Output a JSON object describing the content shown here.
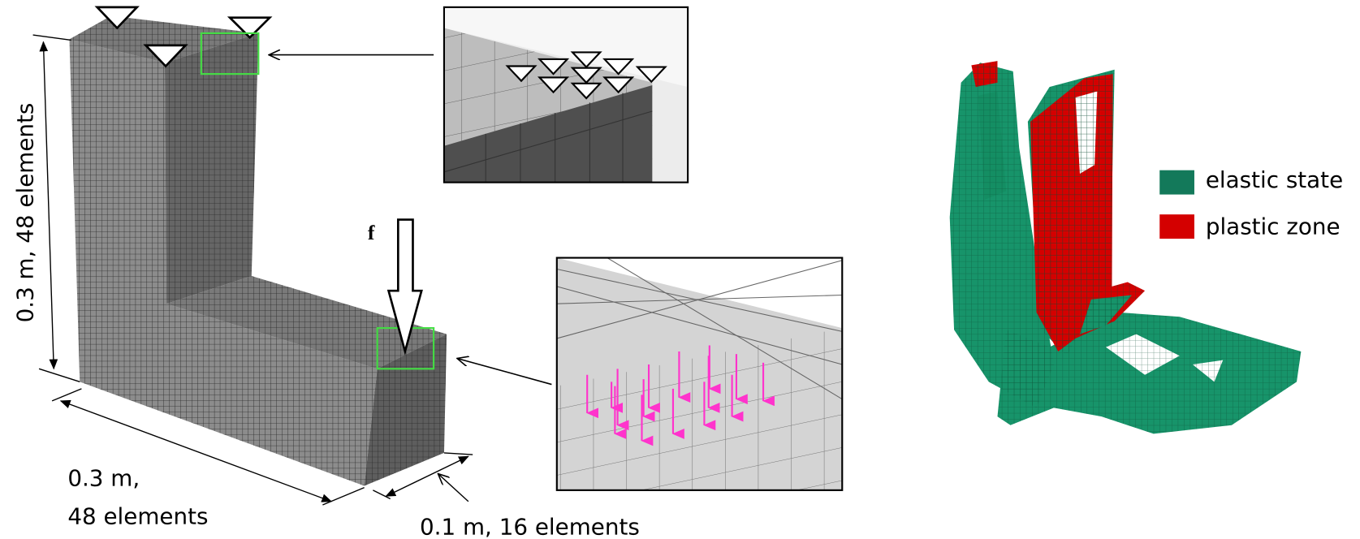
{
  "labels": {
    "height": "0.3 m, 48 elements",
    "width_line1": "0.3 m,",
    "width_line2": "48 elements",
    "depth": "0.1 m, 16 elements",
    "force": "f"
  },
  "legend": [
    {
      "label": "elastic state"
    },
    {
      "label": "plastic zone"
    }
  ]
}
